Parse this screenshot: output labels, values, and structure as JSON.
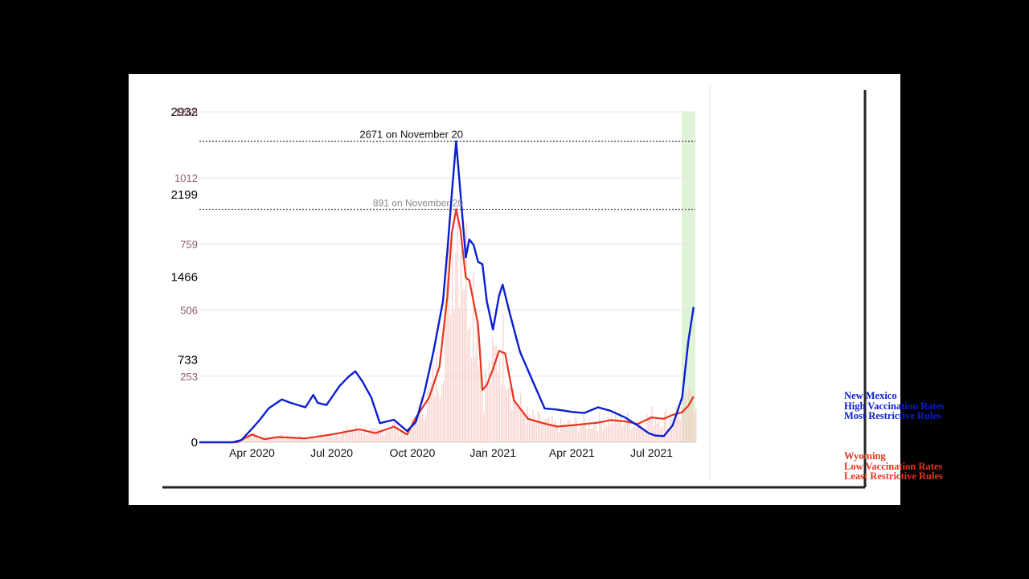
{
  "colors": {
    "new_mexico": "#0a1ed2",
    "wyoming": "#e8331c",
    "wyoming_bars": "#f6c4bf",
    "grid": "#e4e4e4",
    "highlight": "#dff3d6",
    "left_axis_text": "#000000",
    "right_axis_text": "#8a5a62"
  },
  "chart_data": {
    "type": "line",
    "x_ticks": [
      "Apr 2020",
      "Jul 2020",
      "Oct 2020",
      "Jan 2021",
      "Apr 2021",
      "Jul 2021"
    ],
    "x_tick_dates": [
      "2020-04-01",
      "2020-07-01",
      "2020-10-01",
      "2021-01-01",
      "2021-04-01",
      "2021-07-01"
    ],
    "x_range": [
      "2020-02-01",
      "2021-08-20"
    ],
    "y_left": {
      "ticks": [
        0,
        733,
        1466,
        2199,
        2932
      ],
      "range": [
        0,
        2932
      ]
    },
    "y_right": {
      "ticks": [
        0,
        253,
        506,
        759,
        1012,
        1265
      ],
      "range": [
        0,
        1265
      ]
    },
    "annotations": [
      {
        "text": "2671 on November 20",
        "value": 2671,
        "axis": "left"
      },
      {
        "text": "891 on November 20",
        "value": 891,
        "axis": "right"
      }
    ],
    "series": [
      {
        "name": "New Mexico",
        "axis": "left",
        "x": [
          "2020-02-01",
          "2020-03-10",
          "2020-03-20",
          "2020-04-01",
          "2020-04-10",
          "2020-04-20",
          "2020-05-05",
          "2020-05-15",
          "2020-06-01",
          "2020-06-10",
          "2020-06-15",
          "2020-06-25",
          "2020-07-10",
          "2020-07-20",
          "2020-07-28",
          "2020-08-05",
          "2020-08-15",
          "2020-08-25",
          "2020-09-10",
          "2020-09-25",
          "2020-10-05",
          "2020-10-15",
          "2020-10-25",
          "2020-11-05",
          "2020-11-10",
          "2020-11-15",
          "2020-11-20",
          "2020-11-25",
          "2020-12-01",
          "2020-12-05",
          "2020-12-10",
          "2020-12-15",
          "2020-12-20",
          "2020-12-25",
          "2021-01-01",
          "2021-01-08",
          "2021-01-12",
          "2021-01-20",
          "2021-02-01",
          "2021-02-15",
          "2021-03-01",
          "2021-03-15",
          "2021-04-01",
          "2021-04-15",
          "2021-05-01",
          "2021-05-15",
          "2021-06-01",
          "2021-06-15",
          "2021-06-28",
          "2021-07-05",
          "2021-07-15",
          "2021-07-25",
          "2021-08-05",
          "2021-08-12",
          "2021-08-18"
        ],
        "values": [
          0,
          0,
          20,
          120,
          200,
          300,
          380,
          350,
          310,
          420,
          350,
          330,
          500,
          580,
          630,
          540,
          400,
          170,
          200,
          100,
          180,
          450,
          800,
          1250,
          1700,
          2200,
          2671,
          2200,
          1640,
          1800,
          1750,
          1600,
          1580,
          1250,
          1000,
          1300,
          1400,
          1150,
          800,
          550,
          300,
          290,
          270,
          260,
          310,
          280,
          220,
          150,
          80,
          60,
          55,
          150,
          400,
          900,
          1200
        ]
      },
      {
        "name": "Wyoming",
        "axis": "right",
        "x": [
          "2020-02-01",
          "2020-03-15",
          "2020-04-01",
          "2020-04-15",
          "2020-05-01",
          "2020-06-01",
          "2020-07-01",
          "2020-08-01",
          "2020-08-20",
          "2020-09-10",
          "2020-09-25",
          "2020-10-05",
          "2020-10-20",
          "2020-11-01",
          "2020-11-10",
          "2020-11-15",
          "2020-11-20",
          "2020-11-25",
          "2020-12-01",
          "2020-12-05",
          "2020-12-15",
          "2020-12-20",
          "2020-12-25",
          "2021-01-01",
          "2021-01-08",
          "2021-01-15",
          "2021-01-25",
          "2021-02-10",
          "2021-02-25",
          "2021-03-15",
          "2021-04-01",
          "2021-04-15",
          "2021-05-01",
          "2021-05-15",
          "2021-06-01",
          "2021-06-15",
          "2021-07-01",
          "2021-07-15",
          "2021-07-25",
          "2021-08-05",
          "2021-08-12",
          "2021-08-18"
        ],
        "values": [
          0,
          0,
          30,
          12,
          20,
          15,
          30,
          50,
          35,
          60,
          30,
          95,
          170,
          290,
          560,
          800,
          891,
          810,
          630,
          620,
          450,
          200,
          220,
          280,
          350,
          340,
          160,
          90,
          75,
          60,
          65,
          70,
          75,
          85,
          80,
          70,
          95,
          90,
          105,
          115,
          140,
          175
        ]
      }
    ]
  }
}
